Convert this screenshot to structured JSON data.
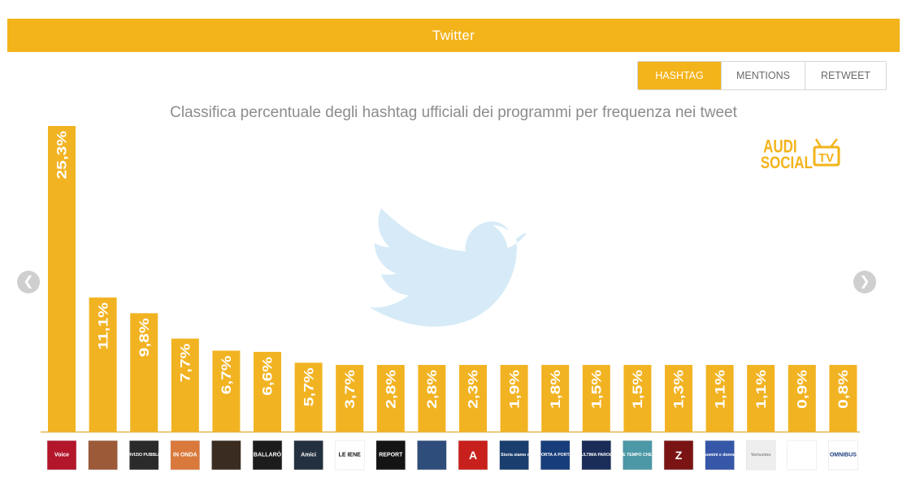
{
  "header": {
    "title": "Twitter"
  },
  "tabs": [
    {
      "label": "HASHTAG",
      "active": true
    },
    {
      "label": "MENTIONS",
      "active": false
    },
    {
      "label": "RETWEET",
      "active": false
    }
  ],
  "logo": {
    "line1": "AUDI",
    "line2": "SOCIAL",
    "badge": "TV"
  },
  "colors": {
    "accent": "#f3b31a",
    "bar": "#f2b322",
    "watermark": "#d6ebf7",
    "axis": "#e3b44a"
  },
  "icons": {
    "watermark": "twitter-bird-icon",
    "prev": "chevron-left-icon",
    "next": "chevron-right-icon"
  },
  "chart_data": {
    "type": "bar",
    "title": "",
    "subtitle": "Classifica percentuale degli hashtag ufficiali dei programmi per frequenza nei tweet",
    "xlabel": "",
    "ylabel": "",
    "ylim": [
      0,
      25.3
    ],
    "grid": false,
    "values": [
      25.3,
      11.1,
      9.8,
      7.7,
      6.7,
      6.6,
      5.7,
      3.7,
      2.8,
      2.8,
      2.3,
      1.9,
      1.8,
      1.5,
      1.5,
      1.3,
      1.1,
      1.1,
      0.9,
      0.8
    ],
    "data_labels": [
      "25,3%",
      "11,1%",
      "9,8%",
      "7,7%",
      "6,7%",
      "6,6%",
      "5,7%",
      "3,7%",
      "2,8%",
      "2,8%",
      "2,3%",
      "1,9%",
      "1,8%",
      "1,5%",
      "1,5%",
      "1,3%",
      "1,1%",
      "1,1%",
      "0,9%",
      "0,8%"
    ],
    "category_thumbnails": [
      {
        "text": "Voice",
        "bg": "#b3162b",
        "fg": "#ffffff"
      },
      {
        "text": "",
        "bg": "#9c5a38",
        "fg": "#ffffff"
      },
      {
        "text": "SERVIZIO PUBBLICO",
        "bg": "#2a2a2a",
        "fg": "#ffffff"
      },
      {
        "text": "IN ONDA",
        "bg": "#d9793b",
        "fg": "#ffffff"
      },
      {
        "text": "",
        "bg": "#3a2c20",
        "fg": "#ffffff"
      },
      {
        "text": "BALLARÒ",
        "bg": "#1c1c1c",
        "fg": "#ffffff"
      },
      {
        "text": "Amici",
        "bg": "#233040",
        "fg": "#ffffff"
      },
      {
        "text": "LE IENE",
        "bg": "#ffffff",
        "fg": "#111111"
      },
      {
        "text": "REPORT",
        "bg": "#141414",
        "fg": "#ffffff"
      },
      {
        "text": "",
        "bg": "#2f4d7a",
        "fg": "#ffffff"
      },
      {
        "text": "A",
        "bg": "#c8201c",
        "fg": "#ffffff"
      },
      {
        "text": "La Storia siamo noi",
        "bg": "#1a3f6e",
        "fg": "#ffffff"
      },
      {
        "text": "PORTA A PORTA",
        "bg": "#173d7a",
        "fg": "#ffffff"
      },
      {
        "text": "L'ULTIMA PAROLA",
        "bg": "#1a2c58",
        "fg": "#ffffff"
      },
      {
        "text": "CHE TEMPO CHE FA",
        "bg": "#4c98a6",
        "fg": "#ffffff"
      },
      {
        "text": "Z",
        "bg": "#7a1414",
        "fg": "#ffffff"
      },
      {
        "text": "uomini e donne",
        "bg": "#3657a8",
        "fg": "#ffffff"
      },
      {
        "text": "Verissimo",
        "bg": "#eeeeee",
        "fg": "#8a8a8a"
      },
      {
        "text": "",
        "bg": "#ffffff",
        "fg": "#d05a1a"
      },
      {
        "text": "OMNIBUS",
        "bg": "#ffffff",
        "fg": "#1e3f7c"
      }
    ]
  }
}
